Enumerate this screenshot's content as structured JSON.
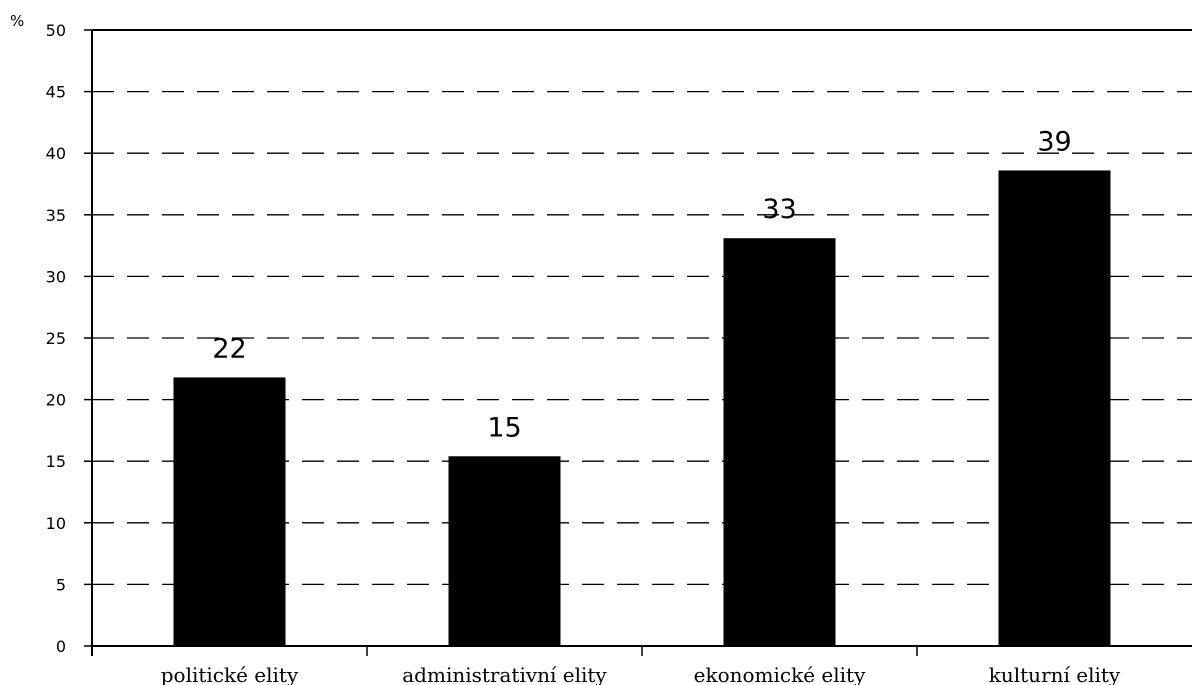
{
  "chart_data": {
    "type": "bar",
    "title": "",
    "xlabel": "",
    "ylabel": "%",
    "ylim": [
      0,
      50
    ],
    "yticks": [
      0,
      5,
      10,
      15,
      20,
      25,
      30,
      35,
      40,
      45,
      50
    ],
    "grid": true,
    "grid_style": "dashed",
    "categories": [
      "politické elity",
      "administrativní elity",
      "ekonomické elity",
      "kulturní elity"
    ],
    "values": [
      21.8,
      15.4,
      33.1,
      38.6
    ],
    "data_labels": [
      "22",
      "15",
      "33",
      "39"
    ],
    "bar_color": "#000000"
  }
}
